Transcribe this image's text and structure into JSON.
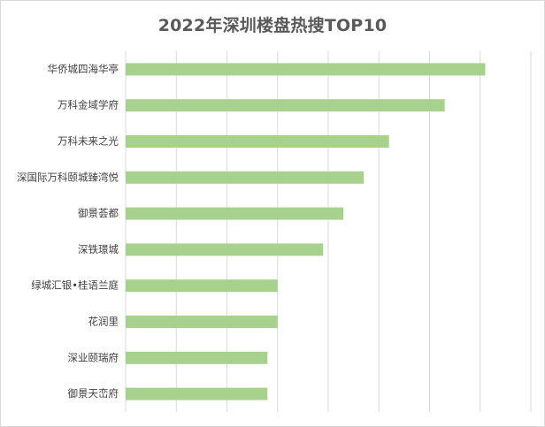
{
  "chart_data": {
    "type": "bar",
    "orientation": "horizontal",
    "title": "2022年深圳楼盘热搜TOP10",
    "xlabel": "",
    "ylabel": "",
    "categories": [
      "华侨城四海华亭",
      "万科金域学府",
      "万科未来之光",
      "深国际万科颐城臻湾悦",
      "御景荟都",
      "深铁璟城",
      "绿城汇银•桂语兰庭",
      "花润里",
      "深业颐瑞府",
      "御景天峦府"
    ],
    "values": [
      7.1,
      6.3,
      5.2,
      4.7,
      4.3,
      3.9,
      3.0,
      3.0,
      2.8,
      2.8
    ],
    "xlim": [
      0,
      8
    ],
    "grid": true,
    "legend": "none",
    "bar_color": "#a9d18e",
    "grid_color": "#d9d9d9"
  }
}
